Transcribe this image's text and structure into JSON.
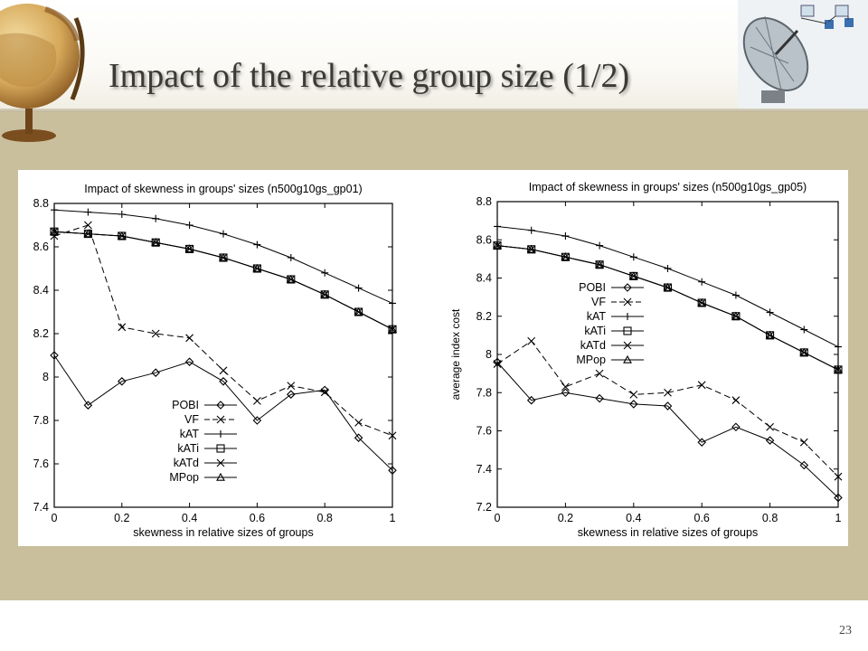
{
  "slide": {
    "title": "Impact of the relative group size (1/2)",
    "page_number": "23"
  },
  "colors": {
    "band": "#c9bf9d",
    "title_text": "#3c3a33",
    "plot_ink": "#000000"
  },
  "icons": [
    "globe-icon",
    "satellite-dish-icon"
  ],
  "chart_data": [
    {
      "type": "line",
      "title": "Impact of skewness in groups' sizes (n500g10gs_gp01)",
      "xlabel": "skewness in relative sizes of groups",
      "ylabel": "",
      "xlim": [
        0,
        1
      ],
      "ylim": [
        7.4,
        8.8
      ],
      "x_ticks": [
        "0",
        "0.2",
        "0.4",
        "0.6",
        "0.8",
        "1"
      ],
      "y_ticks": [
        "7.4",
        "7.6",
        "7.8",
        "8",
        "8.2",
        "8.4",
        "8.6",
        "8.8"
      ],
      "legend_position": "bottom-center",
      "x": [
        0,
        0.1,
        0.2,
        0.3,
        0.4,
        0.5,
        0.6,
        0.7,
        0.8,
        0.9,
        1
      ],
      "series": [
        {
          "name": "POBI",
          "marker": "diamond",
          "dash": "solid",
          "values": [
            8.1,
            7.87,
            7.98,
            8.02,
            8.07,
            7.98,
            7.8,
            7.92,
            7.94,
            7.72,
            7.57
          ]
        },
        {
          "name": "VF",
          "marker": "x",
          "dash": "dashed",
          "values": [
            8.65,
            8.7,
            8.23,
            8.2,
            8.18,
            8.03,
            7.89,
            7.96,
            7.93,
            7.79,
            7.73
          ]
        },
        {
          "name": "kAT",
          "marker": "plus",
          "dash": "solid",
          "values": [
            8.77,
            8.76,
            8.75,
            8.73,
            8.7,
            8.66,
            8.61,
            8.55,
            8.48,
            8.41,
            8.34
          ]
        },
        {
          "name": "kATi",
          "marker": "square",
          "dash": "solid",
          "values": [
            8.67,
            8.66,
            8.65,
            8.62,
            8.59,
            8.55,
            8.5,
            8.45,
            8.38,
            8.3,
            8.22
          ]
        },
        {
          "name": "kATd",
          "marker": "x",
          "dash": "solid",
          "values": [
            8.67,
            8.66,
            8.65,
            8.62,
            8.59,
            8.55,
            8.5,
            8.45,
            8.38,
            8.3,
            8.22
          ]
        },
        {
          "name": "MPop",
          "marker": "triangle",
          "dash": "solid",
          "values": [
            8.67,
            8.66,
            8.65,
            8.62,
            8.59,
            8.55,
            8.5,
            8.45,
            8.38,
            8.3,
            8.22
          ]
        }
      ]
    },
    {
      "type": "line",
      "title": "Impact of skewness in groups' sizes (n500g10gs_gp05)",
      "xlabel": "skewness in relative sizes of groups",
      "ylabel": "average index cost",
      "xlim": [
        0,
        1
      ],
      "ylim": [
        7.2,
        8.8
      ],
      "x_ticks": [
        "0",
        "0.2",
        "0.4",
        "0.6",
        "0.8",
        "1"
      ],
      "y_ticks": [
        "7.2",
        "7.4",
        "7.6",
        "7.8",
        "8",
        "8.2",
        "8.4",
        "8.6",
        "8.8"
      ],
      "legend_position": "center-left",
      "x": [
        0,
        0.1,
        0.2,
        0.3,
        0.4,
        0.5,
        0.6,
        0.7,
        0.8,
        0.9,
        1
      ],
      "series": [
        {
          "name": "POBI",
          "marker": "diamond",
          "dash": "solid",
          "values": [
            7.96,
            7.76,
            7.8,
            7.77,
            7.74,
            7.73,
            7.54,
            7.62,
            7.55,
            7.42,
            7.25
          ]
        },
        {
          "name": "VF",
          "marker": "x",
          "dash": "dashed",
          "values": [
            7.95,
            8.07,
            7.83,
            7.9,
            7.79,
            7.8,
            7.84,
            7.76,
            7.62,
            7.54,
            7.36
          ]
        },
        {
          "name": "kAT",
          "marker": "plus",
          "dash": "solid",
          "values": [
            8.67,
            8.65,
            8.62,
            8.57,
            8.51,
            8.45,
            8.38,
            8.31,
            8.22,
            8.13,
            8.04
          ]
        },
        {
          "name": "kATi",
          "marker": "square",
          "dash": "solid",
          "values": [
            8.57,
            8.55,
            8.51,
            8.47,
            8.41,
            8.35,
            8.27,
            8.2,
            8.1,
            8.01,
            7.92
          ]
        },
        {
          "name": "kATd",
          "marker": "x",
          "dash": "solid",
          "values": [
            8.57,
            8.55,
            8.51,
            8.47,
            8.41,
            8.35,
            8.27,
            8.2,
            8.1,
            8.01,
            7.92
          ]
        },
        {
          "name": "MPop",
          "marker": "triangle",
          "dash": "solid",
          "values": [
            8.57,
            8.55,
            8.51,
            8.47,
            8.41,
            8.35,
            8.27,
            8.2,
            8.1,
            8.01,
            7.92
          ]
        }
      ]
    }
  ]
}
